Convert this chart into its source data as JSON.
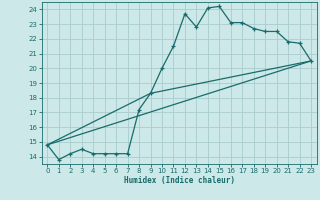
{
  "xlabel": "Humidex (Indice chaleur)",
  "bg_color": "#cce8e8",
  "grid_color": "#aacccc",
  "line_color": "#1a6b6b",
  "xlim": [
    -0.5,
    23.5
  ],
  "ylim": [
    13.5,
    24.5
  ],
  "xticks": [
    0,
    1,
    2,
    3,
    4,
    5,
    6,
    7,
    8,
    9,
    10,
    11,
    12,
    13,
    14,
    15,
    16,
    17,
    18,
    19,
    20,
    21,
    22,
    23
  ],
  "yticks": [
    14,
    15,
    16,
    17,
    18,
    19,
    20,
    21,
    22,
    23,
    24
  ],
  "line1_x": [
    0,
    1,
    2,
    3,
    4,
    5,
    6,
    7,
    8,
    9,
    10,
    11,
    12,
    13,
    14,
    15,
    16,
    17,
    18,
    19,
    20,
    21,
    22,
    23
  ],
  "line1_y": [
    14.8,
    13.8,
    14.2,
    14.5,
    14.2,
    14.2,
    14.2,
    14.2,
    17.2,
    18.3,
    20.0,
    21.5,
    23.7,
    22.8,
    24.1,
    24.2,
    23.1,
    23.1,
    22.7,
    22.5,
    22.5,
    21.8,
    21.7,
    20.5
  ],
  "line2_x": [
    0,
    23
  ],
  "line2_y": [
    14.8,
    20.5
  ],
  "line3_x": [
    0,
    9,
    23
  ],
  "line3_y": [
    14.8,
    18.3,
    20.5
  ]
}
